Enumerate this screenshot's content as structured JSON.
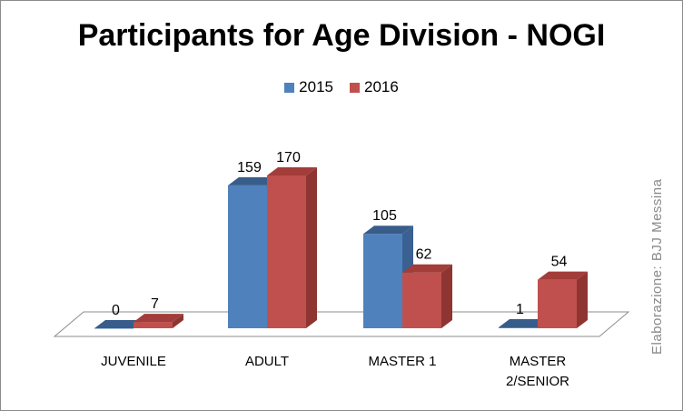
{
  "chart_data": {
    "type": "bar",
    "title": "Participants for Age Division - NOGI",
    "categories": [
      [
        "JUVENILE"
      ],
      [
        "ADULT"
      ],
      [
        "MASTER 1"
      ],
      [
        "MASTER",
        "2/SENIOR"
      ]
    ],
    "series": [
      {
        "name": "2015",
        "values": [
          0,
          159,
          105,
          1
        ],
        "color": "#4f81bd",
        "side_color": "#3a6192",
        "top_color": "#385d8a"
      },
      {
        "name": "2016",
        "values": [
          7,
          170,
          62,
          54
        ],
        "color": "#c0504d",
        "side_color": "#8e3532",
        "top_color": "#a23d3a"
      }
    ],
    "ylim": [
      0,
      170
    ],
    "legend_position": "top",
    "grid": false,
    "credit": "Elaborazione: BJJ Messina"
  }
}
